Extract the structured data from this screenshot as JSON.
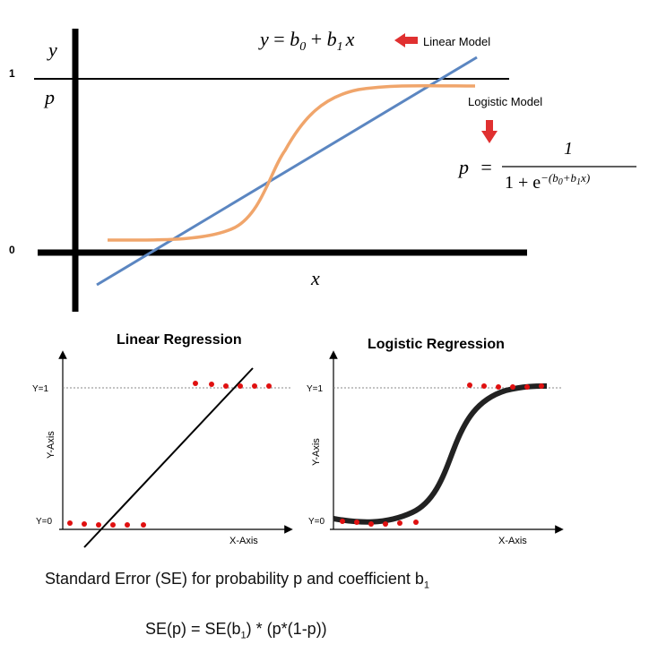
{
  "top": {
    "y_label": "y",
    "p_label": "p",
    "x_label": "x",
    "tick_one": "1",
    "tick_zero": "0",
    "linear_eq": {
      "y": "y",
      "eq": " = ",
      "b0": "b",
      "b0_sub": "0",
      "plus": " + ",
      "b1": "b",
      "b1_sub": "1",
      "x": "x"
    },
    "linear_label": "Linear Model",
    "logistic_label": "Logistic Model",
    "logistic_eq": {
      "p": "p",
      "eq": "=",
      "numerator": "1",
      "denominator": "1 + e",
      "exponent": "−(b",
      "exp_sub0": "0",
      "exp_plus": "+b",
      "exp_sub1": "1",
      "exp_x": "x)"
    },
    "colors": {
      "linear": "#5b86c1",
      "logistic": "#f0a56b",
      "arrow": "#e03030",
      "axis": "#000000"
    }
  },
  "linear_panel": {
    "title": "Linear Regression",
    "y_axis_label": "Y-Axis",
    "x_axis_label": "X-Axis",
    "y1_label": "Y=1",
    "y0_label": "Y=0"
  },
  "logistic_panel": {
    "title": "Logistic Regression",
    "y_axis_label": "Y-Axis",
    "x_axis_label": "X-Axis",
    "y1_label": "Y=1",
    "y0_label": "Y=0"
  },
  "se_caption": {
    "text": "Standard Error (SE) for probability p and coefficient b",
    "sub": "1"
  },
  "se_formula": {
    "pre": "SE(p) = SE(b",
    "sub": "1",
    "post": ") * (p*(1-p))"
  }
}
